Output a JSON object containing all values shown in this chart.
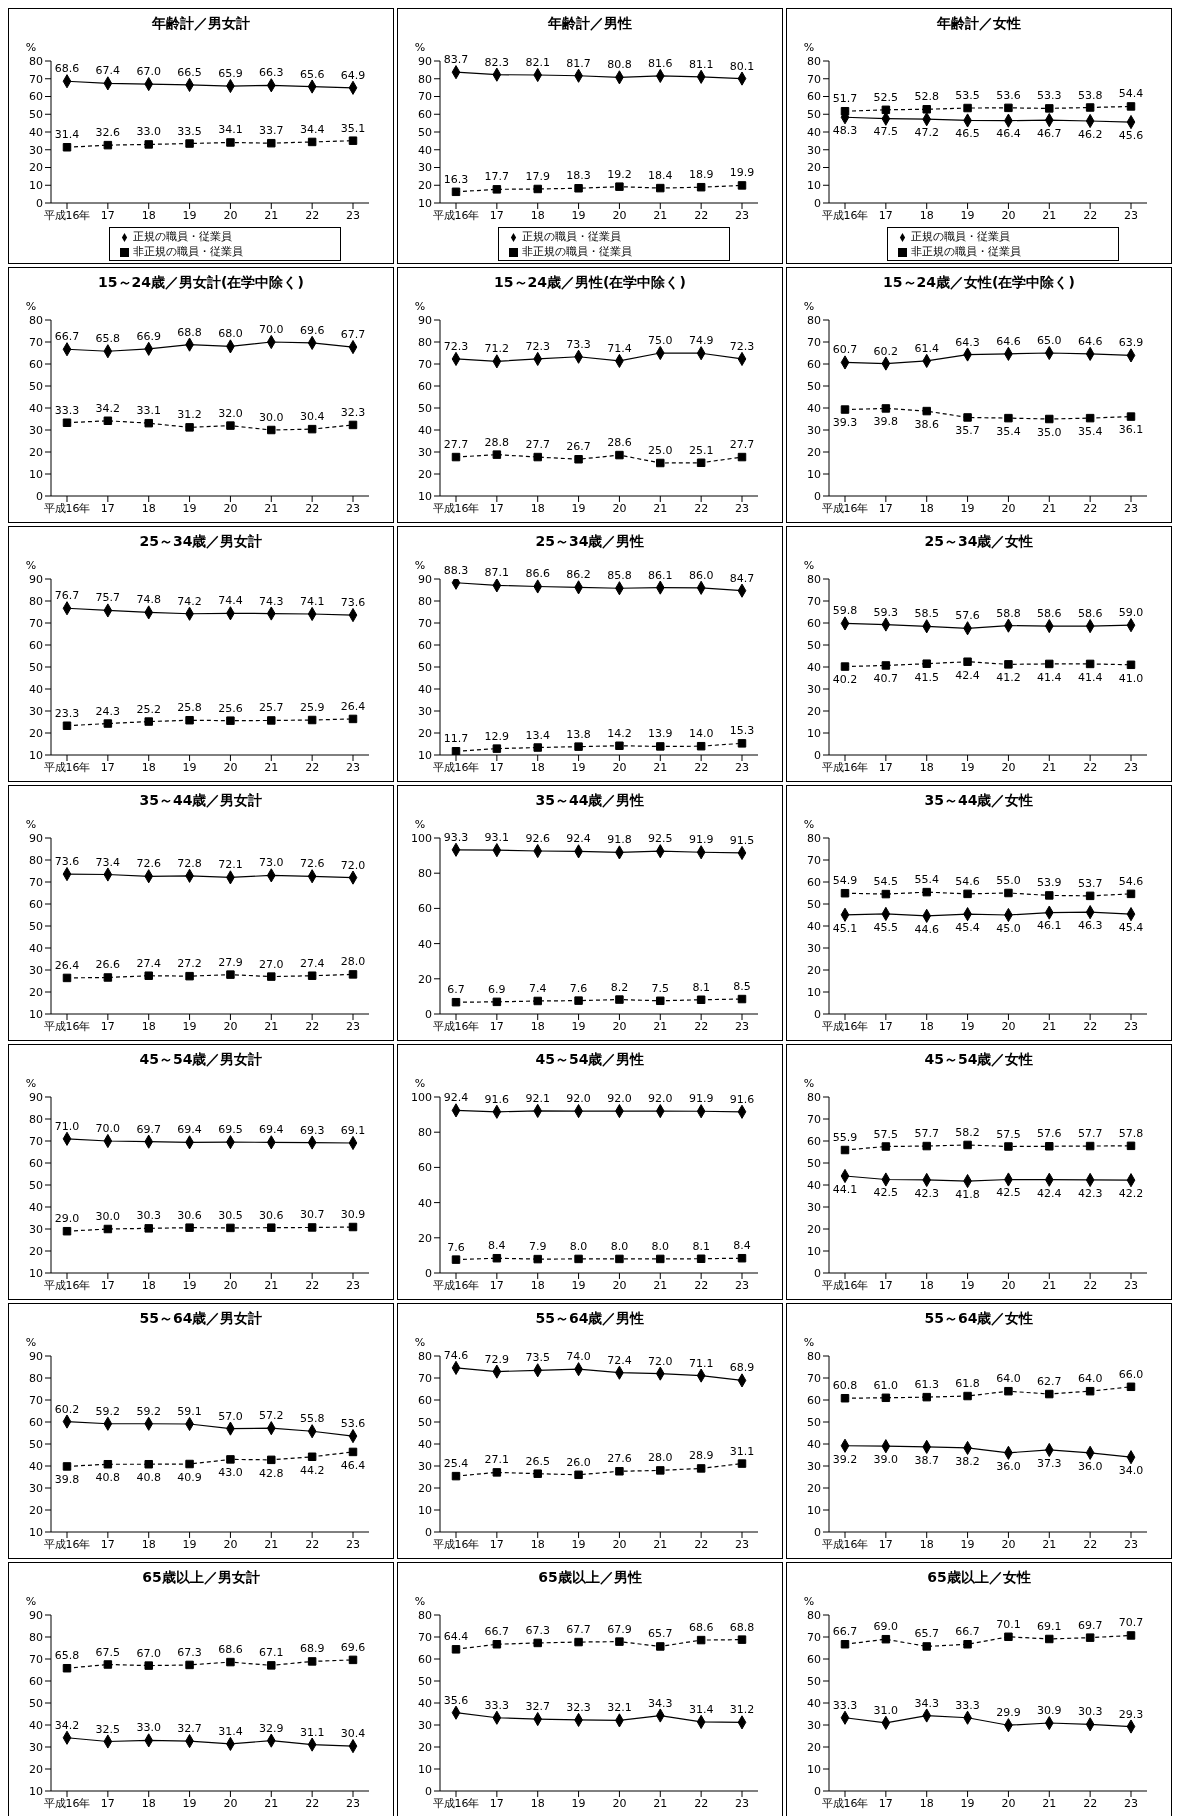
{
  "chart_data": [
    {
      "type": "line",
      "title": "年齢計／男女計",
      "ylabel": "%",
      "categories": [
        "平成16年",
        "17",
        "18",
        "19",
        "20",
        "21",
        "22",
        "23"
      ],
      "ylim": [
        0,
        80
      ],
      "yticks": [
        0,
        10,
        20,
        30,
        40,
        50,
        60,
        70,
        80
      ],
      "legend": "bottom",
      "series": [
        {
          "name": "正規の職員・従業員",
          "color": "#000000",
          "marker": "diamond",
          "line_style": "solid",
          "values": [
            68.6,
            67.4,
            67.0,
            66.5,
            65.9,
            66.3,
            65.6,
            64.9
          ],
          "value_labels": [
            "68.6",
            "67.4",
            "67.0",
            "66.5",
            "65.9",
            "66.3",
            "65.6",
            "64.9"
          ]
        },
        {
          "name": "非正規の職員・従業員",
          "color": "#000000",
          "marker": "square",
          "line_style": "dashed",
          "values": [
            31.4,
            32.6,
            33.0,
            33.5,
            34.1,
            33.7,
            34.4,
            35.1
          ],
          "value_labels": [
            "31.4",
            "32.6",
            "33.0",
            "33.5",
            "34.1",
            "33.7",
            "34.4",
            "35.1"
          ]
        }
      ]
    },
    {
      "type": "line",
      "title": "年齢計／男性",
      "ylabel": "%",
      "categories": [
        "平成16年",
        "17",
        "18",
        "19",
        "20",
        "21",
        "22",
        "23"
      ],
      "ylim": [
        10,
        90
      ],
      "yticks": [
        10,
        20,
        30,
        40,
        50,
        60,
        70,
        80,
        90
      ],
      "legend": "bottom",
      "series": [
        {
          "name": "正規の職員・従業員",
          "color": "#000000",
          "marker": "diamond",
          "line_style": "solid",
          "values": [
            83.7,
            82.3,
            82.1,
            81.7,
            80.8,
            81.6,
            81.1,
            80.1
          ],
          "value_labels": [
            "83.7",
            "82.3",
            "82.1",
            "81.7",
            "80.8",
            "81.6",
            "81.1",
            "80.1"
          ]
        },
        {
          "name": "非正規の職員・従業員",
          "color": "#000000",
          "marker": "square",
          "line_style": "dashed",
          "values": [
            16.3,
            17.7,
            17.9,
            18.3,
            19.2,
            18.4,
            18.9,
            19.9
          ],
          "value_labels": [
            "16.3",
            "17.7",
            "17.9",
            "18.3",
            "19.2",
            "18.4",
            "18.9",
            "19.9"
          ]
        }
      ]
    },
    {
      "type": "line",
      "title": "年齢計／女性",
      "ylabel": "%",
      "categories": [
        "平成16年",
        "17",
        "18",
        "19",
        "20",
        "21",
        "22",
        "23"
      ],
      "ylim": [
        0,
        80
      ],
      "yticks": [
        0,
        10,
        20,
        30,
        40,
        50,
        60,
        70,
        80
      ],
      "legend": "bottom",
      "series": [
        {
          "name": "正規の職員・従業員",
          "color": "#000000",
          "marker": "diamond",
          "line_style": "solid",
          "values": [
            48.3,
            47.5,
            47.2,
            46.5,
            46.4,
            46.7,
            46.2,
            45.6
          ],
          "value_labels": [
            "48.3",
            "47.5",
            "47.2",
            "46.5",
            "46.4",
            "46.7",
            "46.2",
            "45.6"
          ]
        },
        {
          "name": "非正規の職員・従業員",
          "color": "#000000",
          "marker": "square",
          "line_style": "dashed",
          "values": [
            51.7,
            52.5,
            52.8,
            53.5,
            53.6,
            53.3,
            53.8,
            54.4
          ],
          "value_labels": [
            "51.7",
            "52.5",
            "52.8",
            "53.5",
            "53.6",
            "53.3",
            "53.8",
            "54.4"
          ]
        }
      ]
    },
    {
      "type": "line",
      "title": "15～24歳／男女計(在学中除く)",
      "ylabel": "%",
      "categories": [
        "平成16年",
        "17",
        "18",
        "19",
        "20",
        "21",
        "22",
        "23"
      ],
      "ylim": [
        0,
        80
      ],
      "yticks": [
        0,
        10,
        20,
        30,
        40,
        50,
        60,
        70,
        80
      ],
      "series": [
        {
          "color": "#000000",
          "marker": "diamond",
          "line_style": "solid",
          "values": [
            66.7,
            65.8,
            66.9,
            68.8,
            68.0,
            70.0,
            69.6,
            67.7
          ],
          "value_labels": [
            "66.7",
            "65.8",
            "66.9",
            "68.8",
            "68.0",
            "70.0",
            "69.6",
            "67.7"
          ]
        },
        {
          "color": "#000000",
          "marker": "square",
          "line_style": "dashed",
          "values": [
            33.3,
            34.2,
            33.1,
            31.2,
            32.0,
            30.0,
            30.4,
            32.3
          ],
          "value_labels": [
            "33.3",
            "34.2",
            "33.1",
            "31.2",
            "32.0",
            "30.0",
            "30.4",
            "32.3"
          ]
        }
      ]
    },
    {
      "type": "line",
      "title": "15～24歳／男性(在学中除く)",
      "ylabel": "%",
      "categories": [
        "平成16年",
        "17",
        "18",
        "19",
        "20",
        "21",
        "22",
        "23"
      ],
      "ylim": [
        10,
        90
      ],
      "yticks": [
        10,
        20,
        30,
        40,
        50,
        60,
        70,
        80,
        90
      ],
      "series": [
        {
          "color": "#000000",
          "marker": "diamond",
          "line_style": "solid",
          "values": [
            72.3,
            71.2,
            72.3,
            73.3,
            71.4,
            75.0,
            74.9,
            72.3
          ],
          "value_labels": [
            "72.3",
            "71.2",
            "72.3",
            "73.3",
            "71.4",
            "75.0",
            "74.9",
            "72.3"
          ]
        },
        {
          "color": "#000000",
          "marker": "square",
          "line_style": "dashed",
          "values": [
            27.7,
            28.8,
            27.7,
            26.7,
            28.6,
            25.0,
            25.1,
            27.7
          ],
          "value_labels": [
            "27.7",
            "28.8",
            "27.7",
            "26.7",
            "28.6",
            "25.0",
            "25.1",
            "27.7"
          ]
        }
      ]
    },
    {
      "type": "line",
      "title": "15～24歳／女性(在学中除く)",
      "ylabel": "%",
      "categories": [
        "平成16年",
        "17",
        "18",
        "19",
        "20",
        "21",
        "22",
        "23"
      ],
      "ylim": [
        0,
        80
      ],
      "yticks": [
        0,
        10,
        20,
        30,
        40,
        50,
        60,
        70,
        80
      ],
      "series": [
        {
          "color": "#000000",
          "marker": "diamond",
          "line_style": "solid",
          "values": [
            60.7,
            60.2,
            61.4,
            64.3,
            64.6,
            65.0,
            64.6,
            63.9
          ],
          "value_labels": [
            "60.7",
            "60.2",
            "61.4",
            "64.3",
            "64.6",
            "65.0",
            "64.6",
            "63.9"
          ]
        },
        {
          "color": "#000000",
          "marker": "square",
          "line_style": "dashed",
          "values": [
            39.3,
            39.8,
            38.6,
            35.7,
            35.4,
            35.0,
            35.4,
            36.1
          ],
          "value_labels": [
            "39.3",
            "39.8",
            "38.6",
            "35.7",
            "35.4",
            "35.0",
            "35.4",
            "36.1"
          ]
        }
      ]
    },
    {
      "type": "line",
      "title": "25～34歳／男女計",
      "ylabel": "%",
      "categories": [
        "平成16年",
        "17",
        "18",
        "19",
        "20",
        "21",
        "22",
        "23"
      ],
      "ylim": [
        10,
        90
      ],
      "yticks": [
        10,
        20,
        30,
        40,
        50,
        60,
        70,
        80,
        90
      ],
      "series": [
        {
          "color": "#000000",
          "marker": "diamond",
          "line_style": "solid",
          "values": [
            76.7,
            75.7,
            74.8,
            74.2,
            74.4,
            74.3,
            74.1,
            73.6
          ],
          "value_labels": [
            "76.7",
            "75.7",
            "74.8",
            "74.2",
            "74.4",
            "74.3",
            "74.1",
            "73.6"
          ]
        },
        {
          "color": "#000000",
          "marker": "square",
          "line_style": "dashed",
          "values": [
            23.3,
            24.3,
            25.2,
            25.8,
            25.6,
            25.7,
            25.9,
            26.4
          ],
          "value_labels": [
            "23.3",
            "24.3",
            "25.2",
            "25.8",
            "25.6",
            "25.7",
            "25.9",
            "26.4"
          ]
        }
      ]
    },
    {
      "type": "line",
      "title": "25～34歳／男性",
      "ylabel": "%",
      "categories": [
        "平成16年",
        "17",
        "18",
        "19",
        "20",
        "21",
        "22",
        "23"
      ],
      "ylim": [
        10,
        90
      ],
      "yticks": [
        10,
        20,
        30,
        40,
        50,
        60,
        70,
        80,
        90
      ],
      "series": [
        {
          "color": "#000000",
          "marker": "diamond",
          "line_style": "solid",
          "values": [
            88.3,
            87.1,
            86.6,
            86.2,
            85.8,
            86.1,
            86.0,
            84.7
          ],
          "value_labels": [
            "88.3",
            "87.1",
            "86.6",
            "86.2",
            "85.8",
            "86.1",
            "86.0",
            "84.7"
          ]
        },
        {
          "color": "#000000",
          "marker": "square",
          "line_style": "dashed",
          "values": [
            11.7,
            12.9,
            13.4,
            13.8,
            14.2,
            13.9,
            14.0,
            15.3
          ],
          "value_labels": [
            "11.7",
            "12.9",
            "13.4",
            "13.8",
            "14.2",
            "13.9",
            "14.0",
            "15.3"
          ]
        }
      ]
    },
    {
      "type": "line",
      "title": "25～34歳／女性",
      "ylabel": "%",
      "categories": [
        "平成16年",
        "17",
        "18",
        "19",
        "20",
        "21",
        "22",
        "23"
      ],
      "ylim": [
        0,
        80
      ],
      "yticks": [
        0,
        10,
        20,
        30,
        40,
        50,
        60,
        70,
        80
      ],
      "series": [
        {
          "color": "#000000",
          "marker": "diamond",
          "line_style": "solid",
          "values": [
            59.8,
            59.3,
            58.5,
            57.6,
            58.8,
            58.6,
            58.6,
            59.0
          ],
          "value_labels": [
            "59.8",
            "59.3",
            "58.5",
            "57.6",
            "58.8",
            "58.6",
            "58.6",
            "59.0"
          ]
        },
        {
          "color": "#000000",
          "marker": "square",
          "line_style": "dashed",
          "values": [
            40.2,
            40.7,
            41.5,
            42.4,
            41.2,
            41.4,
            41.4,
            41.0
          ],
          "value_labels": [
            "40.2",
            "40.7",
            "41.5",
            "42.4",
            "41.2",
            "41.4",
            "41.4",
            "41.0"
          ]
        }
      ]
    },
    {
      "type": "line",
      "title": "35～44歳／男女計",
      "ylabel": "%",
      "categories": [
        "平成16年",
        "17",
        "18",
        "19",
        "20",
        "21",
        "22",
        "23"
      ],
      "ylim": [
        10,
        90
      ],
      "yticks": [
        10,
        20,
        30,
        40,
        50,
        60,
        70,
        80,
        90
      ],
      "series": [
        {
          "color": "#000000",
          "marker": "diamond",
          "line_style": "solid",
          "values": [
            73.6,
            73.4,
            72.6,
            72.8,
            72.1,
            73.0,
            72.6,
            72.0
          ],
          "value_labels": [
            "73.6",
            "73.4",
            "72.6",
            "72.8",
            "72.1",
            "73.0",
            "72.6",
            "72.0"
          ]
        },
        {
          "color": "#000000",
          "marker": "square",
          "line_style": "dashed",
          "values": [
            26.4,
            26.6,
            27.4,
            27.2,
            27.9,
            27.0,
            27.4,
            28.0
          ],
          "value_labels": [
            "26.4",
            "26.6",
            "27.4",
            "27.2",
            "27.9",
            "27.0",
            "27.4",
            "28.0"
          ]
        }
      ]
    },
    {
      "type": "line",
      "title": "35～44歳／男性",
      "ylabel": "%",
      "categories": [
        "平成16年",
        "17",
        "18",
        "19",
        "20",
        "21",
        "22",
        "23"
      ],
      "ylim": [
        0,
        100
      ],
      "yticks": [
        0,
        20,
        40,
        60,
        80,
        100
      ],
      "series": [
        {
          "color": "#000000",
          "marker": "diamond",
          "line_style": "solid",
          "values": [
            93.3,
            93.1,
            92.6,
            92.4,
            91.8,
            92.5,
            91.9,
            91.5
          ],
          "value_labels": [
            "93.3",
            "93.1",
            "92.6",
            "92.4",
            "91.8",
            "92.5",
            "91.9",
            "91.5"
          ]
        },
        {
          "color": "#000000",
          "marker": "square",
          "line_style": "dashed",
          "values": [
            6.7,
            6.9,
            7.4,
            7.6,
            8.2,
            7.5,
            8.1,
            8.5
          ],
          "value_labels": [
            "6.7",
            "6.9",
            "7.4",
            "7.6",
            "8.2",
            "7.5",
            "8.1",
            "8.5"
          ]
        }
      ]
    },
    {
      "type": "line",
      "title": "35～44歳／女性",
      "ylabel": "%",
      "categories": [
        "平成16年",
        "17",
        "18",
        "19",
        "20",
        "21",
        "22",
        "23"
      ],
      "ylim": [
        0,
        80
      ],
      "yticks": [
        0,
        10,
        20,
        30,
        40,
        50,
        60,
        70,
        80
      ],
      "series": [
        {
          "color": "#000000",
          "marker": "diamond",
          "line_style": "solid",
          "values": [
            45.1,
            45.5,
            44.6,
            45.4,
            45.0,
            46.1,
            46.3,
            45.4
          ],
          "value_labels": [
            "45.1",
            "45.5",
            "44.6",
            "45.4",
            "45.0",
            "46.1",
            "46.3",
            "45.4"
          ]
        },
        {
          "color": "#000000",
          "marker": "square",
          "line_style": "dashed",
          "values": [
            54.9,
            54.5,
            55.4,
            54.6,
            55.0,
            53.9,
            53.7,
            54.6
          ],
          "value_labels": [
            "54.9",
            "54.5",
            "55.4",
            "54.6",
            "55.0",
            "53.9",
            "53.7",
            "54.6"
          ]
        }
      ]
    },
    {
      "type": "line",
      "title": "45～54歳／男女計",
      "ylabel": "%",
      "categories": [
        "平成16年",
        "17",
        "18",
        "19",
        "20",
        "21",
        "22",
        "23"
      ],
      "ylim": [
        10,
        90
      ],
      "yticks": [
        10,
        20,
        30,
        40,
        50,
        60,
        70,
        80,
        90
      ],
      "series": [
        {
          "color": "#000000",
          "marker": "diamond",
          "line_style": "solid",
          "values": [
            71.0,
            70.0,
            69.7,
            69.4,
            69.5,
            69.4,
            69.3,
            69.1
          ],
          "value_labels": [
            "71.0",
            "70.0",
            "69.7",
            "69.4",
            "69.5",
            "69.4",
            "69.3",
            "69.1"
          ]
        },
        {
          "color": "#000000",
          "marker": "square",
          "line_style": "dashed",
          "values": [
            29.0,
            30.0,
            30.3,
            30.6,
            30.5,
            30.6,
            30.7,
            30.9
          ],
          "value_labels": [
            "29.0",
            "30.0",
            "30.3",
            "30.6",
            "30.5",
            "30.6",
            "30.7",
            "30.9"
          ]
        }
      ]
    },
    {
      "type": "line",
      "title": "45～54歳／男性",
      "ylabel": "%",
      "categories": [
        "平成16年",
        "17",
        "18",
        "19",
        "20",
        "21",
        "22",
        "23"
      ],
      "ylim": [
        0,
        100
      ],
      "yticks": [
        0,
        20,
        40,
        60,
        80,
        100
      ],
      "series": [
        {
          "color": "#000000",
          "marker": "diamond",
          "line_style": "solid",
          "values": [
            92.4,
            91.6,
            92.1,
            92.0,
            92.0,
            92.0,
            91.9,
            91.6
          ],
          "value_labels": [
            "92.4",
            "91.6",
            "92.1",
            "92.0",
            "92.0",
            "92.0",
            "91.9",
            "91.6"
          ]
        },
        {
          "color": "#000000",
          "marker": "square",
          "line_style": "dashed",
          "values": [
            7.6,
            8.4,
            7.9,
            8.0,
            8.0,
            8.0,
            8.1,
            8.4
          ],
          "value_labels": [
            "7.6",
            "8.4",
            "7.9",
            "8.0",
            "8.0",
            "8.0",
            "8.1",
            "8.4"
          ]
        }
      ]
    },
    {
      "type": "line",
      "title": "45～54歳／女性",
      "ylabel": "%",
      "categories": [
        "平成16年",
        "17",
        "18",
        "19",
        "20",
        "21",
        "22",
        "23"
      ],
      "ylim": [
        0,
        80
      ],
      "yticks": [
        0,
        10,
        20,
        30,
        40,
        50,
        60,
        70,
        80
      ],
      "series": [
        {
          "color": "#000000",
          "marker": "diamond",
          "line_style": "solid",
          "values": [
            44.1,
            42.5,
            42.3,
            41.8,
            42.5,
            42.4,
            42.3,
            42.2
          ],
          "value_labels": [
            "44.1",
            "42.5",
            "42.3",
            "41.8",
            "42.5",
            "42.4",
            "42.3",
            "42.2"
          ]
        },
        {
          "color": "#000000",
          "marker": "square",
          "line_style": "dashed",
          "values": [
            55.9,
            57.5,
            57.7,
            58.2,
            57.5,
            57.6,
            57.7,
            57.8
          ],
          "value_labels": [
            "55.9",
            "57.5",
            "57.7",
            "58.2",
            "57.5",
            "57.6",
            "57.7",
            "57.8"
          ]
        }
      ]
    },
    {
      "type": "line",
      "title": "55～64歳／男女計",
      "ylabel": "%",
      "categories": [
        "平成16年",
        "17",
        "18",
        "19",
        "20",
        "21",
        "22",
        "23"
      ],
      "ylim": [
        10,
        90
      ],
      "yticks": [
        10,
        20,
        30,
        40,
        50,
        60,
        70,
        80,
        90
      ],
      "series": [
        {
          "color": "#000000",
          "marker": "diamond",
          "line_style": "solid",
          "values": [
            60.2,
            59.2,
            59.2,
            59.1,
            57.0,
            57.2,
            55.8,
            53.6
          ],
          "value_labels": [
            "60.2",
            "59.2",
            "59.2",
            "59.1",
            "57.0",
            "57.2",
            "55.8",
            "53.6"
          ]
        },
        {
          "color": "#000000",
          "marker": "square",
          "line_style": "dashed",
          "values": [
            39.8,
            40.8,
            40.8,
            40.9,
            43.0,
            42.8,
            44.2,
            46.4
          ],
          "value_labels": [
            "39.8",
            "40.8",
            "40.8",
            "40.9",
            "43.0",
            "42.8",
            "44.2",
            "46.4"
          ]
        }
      ]
    },
    {
      "type": "line",
      "title": "55～64歳／男性",
      "ylabel": "%",
      "categories": [
        "平成16年",
        "17",
        "18",
        "19",
        "20",
        "21",
        "22",
        "23"
      ],
      "ylim": [
        0,
        80
      ],
      "yticks": [
        0,
        10,
        20,
        30,
        40,
        50,
        60,
        70,
        80
      ],
      "series": [
        {
          "color": "#000000",
          "marker": "diamond",
          "line_style": "solid",
          "values": [
            74.6,
            72.9,
            73.5,
            74.0,
            72.4,
            72.0,
            71.1,
            68.9
          ],
          "value_labels": [
            "74.6",
            "72.9",
            "73.5",
            "74.0",
            "72.4",
            "72.0",
            "71.1",
            "68.9"
          ]
        },
        {
          "color": "#000000",
          "marker": "square",
          "line_style": "dashed",
          "values": [
            25.4,
            27.1,
            26.5,
            26.0,
            27.6,
            28.0,
            28.9,
            31.1
          ],
          "value_labels": [
            "25.4",
            "27.1",
            "26.5",
            "26.0",
            "27.6",
            "28.0",
            "28.9",
            "31.1"
          ]
        }
      ]
    },
    {
      "type": "line",
      "title": "55～64歳／女性",
      "ylabel": "%",
      "categories": [
        "平成16年",
        "17",
        "18",
        "19",
        "20",
        "21",
        "22",
        "23"
      ],
      "ylim": [
        0,
        80
      ],
      "yticks": [
        0,
        10,
        20,
        30,
        40,
        50,
        60,
        70,
        80
      ],
      "series": [
        {
          "color": "#000000",
          "marker": "diamond",
          "line_style": "solid",
          "values": [
            39.2,
            39.0,
            38.7,
            38.2,
            36.0,
            37.3,
            36.0,
            34.0
          ],
          "value_labels": [
            "39.2",
            "39.0",
            "38.7",
            "38.2",
            "36.0",
            "37.3",
            "36.0",
            "34.0"
          ]
        },
        {
          "color": "#000000",
          "marker": "square",
          "line_style": "dashed",
          "values": [
            60.8,
            61.0,
            61.3,
            61.8,
            64.0,
            62.7,
            64.0,
            66.0
          ],
          "value_labels": [
            "60.8",
            "61.0",
            "61.3",
            "61.8",
            "64.0",
            "62.7",
            "64.0",
            "66.0"
          ]
        }
      ]
    },
    {
      "type": "line",
      "title": "65歳以上／男女計",
      "ylabel": "%",
      "categories": [
        "平成16年",
        "17",
        "18",
        "19",
        "20",
        "21",
        "22",
        "23"
      ],
      "ylim": [
        10,
        90
      ],
      "yticks": [
        10,
        20,
        30,
        40,
        50,
        60,
        70,
        80,
        90
      ],
      "series": [
        {
          "color": "#000000",
          "marker": "diamond",
          "line_style": "solid",
          "values": [
            34.2,
            32.5,
            33.0,
            32.7,
            31.4,
            32.9,
            31.1,
            30.4
          ],
          "value_labels": [
            "34.2",
            "32.5",
            "33.0",
            "32.7",
            "31.4",
            "32.9",
            "31.1",
            "30.4"
          ]
        },
        {
          "color": "#000000",
          "marker": "square",
          "line_style": "dashed",
          "values": [
            65.8,
            67.5,
            67.0,
            67.3,
            68.6,
            67.1,
            68.9,
            69.6
          ],
          "value_labels": [
            "65.8",
            "67.5",
            "67.0",
            "67.3",
            "68.6",
            "67.1",
            "68.9",
            "69.6"
          ]
        }
      ]
    },
    {
      "type": "line",
      "title": "65歳以上／男性",
      "ylabel": "%",
      "categories": [
        "平成16年",
        "17",
        "18",
        "19",
        "20",
        "21",
        "22",
        "23"
      ],
      "ylim": [
        0,
        80
      ],
      "yticks": [
        0,
        10,
        20,
        30,
        40,
        50,
        60,
        70,
        80
      ],
      "series": [
        {
          "color": "#000000",
          "marker": "diamond",
          "line_style": "solid",
          "values": [
            35.6,
            33.3,
            32.7,
            32.3,
            32.1,
            34.3,
            31.4,
            31.2
          ],
          "value_labels": [
            "35.6",
            "33.3",
            "32.7",
            "32.3",
            "32.1",
            "34.3",
            "31.4",
            "31.2"
          ]
        },
        {
          "color": "#000000",
          "marker": "square",
          "line_style": "dashed",
          "values": [
            64.4,
            66.7,
            67.3,
            67.7,
            67.9,
            65.7,
            68.6,
            68.8
          ],
          "value_labels": [
            "64.4",
            "66.7",
            "67.3",
            "67.7",
            "67.9",
            "65.7",
            "68.6",
            "68.8"
          ]
        }
      ]
    },
    {
      "type": "line",
      "title": "65歳以上／女性",
      "ylabel": "%",
      "categories": [
        "平成16年",
        "17",
        "18",
        "19",
        "20",
        "21",
        "22",
        "23"
      ],
      "ylim": [
        0,
        80
      ],
      "yticks": [
        0,
        10,
        20,
        30,
        40,
        50,
        60,
        70,
        80
      ],
      "series": [
        {
          "color": "#000000",
          "marker": "diamond",
          "line_style": "solid",
          "values": [
            33.3,
            31.0,
            34.3,
            33.3,
            29.9,
            30.9,
            30.3,
            29.3
          ],
          "value_labels": [
            "33.3",
            "31.0",
            "34.3",
            "33.3",
            "29.9",
            "30.9",
            "30.3",
            "29.3"
          ]
        },
        {
          "color": "#000000",
          "marker": "square",
          "line_style": "dashed",
          "values": [
            66.7,
            69.0,
            65.7,
            66.7,
            70.1,
            69.1,
            69.7,
            70.7
          ],
          "value_labels": [
            "66.7",
            "69.0",
            "65.7",
            "66.7",
            "70.1",
            "69.1",
            "69.7",
            "70.7"
          ]
        }
      ]
    }
  ]
}
